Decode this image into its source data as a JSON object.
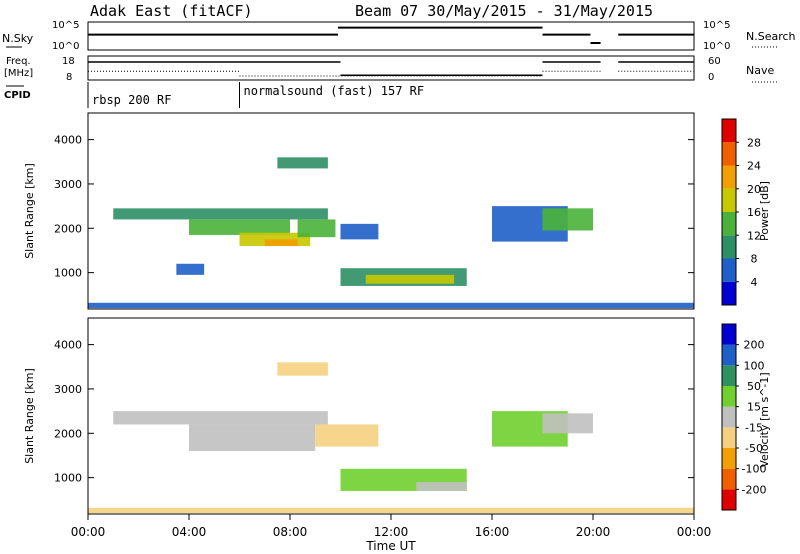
{
  "header": {
    "title_left": "Adak East (fitACF)",
    "title_right": "Beam 07 30/May/2015 - 31/May/2015"
  },
  "chart_data": {
    "type": "heatmap",
    "time_axis": {
      "label": "Time UT",
      "ticks": [
        "00:00",
        "04:00",
        "08:00",
        "12:00",
        "16:00",
        "20:00",
        "00:00"
      ],
      "range_hours": [
        0,
        24
      ]
    },
    "nsky_panel": {
      "label_left": "N.Sky",
      "label_right": "N.Search",
      "ticks_left": [
        "10^5",
        "10^0"
      ],
      "ticks_right": [
        "10^5",
        "10^0"
      ],
      "segments": [
        {
          "t0": 0.0,
          "t1": 9.9,
          "level": 0.55
        },
        {
          "t0": 9.9,
          "t1": 18.0,
          "level": 0.8
        },
        {
          "t0": 18.0,
          "t1": 19.9,
          "level": 0.55
        },
        {
          "t0": 19.9,
          "t1": 20.3,
          "level": 0.25
        },
        {
          "t0": 21.0,
          "t1": 24.0,
          "level": 0.55
        }
      ]
    },
    "freq_panel": {
      "label_left_line1": "Freq.",
      "label_left_line2": "[MHz]",
      "label_right": "Nave",
      "ticks_left": [
        "18",
        "8"
      ],
      "ticks_right": [
        "60",
        "0"
      ],
      "freq_segments": [
        {
          "t0": 0.0,
          "t1": 10.0,
          "freq": 15.5
        },
        {
          "t0": 10.0,
          "t1": 18.0,
          "freq": 10.0
        },
        {
          "t0": 18.0,
          "t1": 20.3,
          "freq": 15.5
        },
        {
          "t0": 21.0,
          "t1": 24.0,
          "freq": 15.5
        }
      ],
      "nave_segments": [
        {
          "t0": 0.0,
          "t1": 6.0,
          "nave": 22
        },
        {
          "t0": 6.0,
          "t1": 18.0,
          "nave": 10
        },
        {
          "t0": 18.0,
          "t1": 20.3,
          "nave": 22
        },
        {
          "t0": 21.0,
          "t1": 24.0,
          "nave": 22
        }
      ]
    },
    "cpid": {
      "label": "CPID",
      "segments": [
        {
          "t0": 0.0,
          "t1": 6.0,
          "text": "rbsp 200 RF"
        },
        {
          "t0": 6.0,
          "t1": 24.0,
          "text": "normalsound (fast) 157 RF"
        }
      ]
    },
    "power_panel": {
      "ylabel": "Slant Range [km]",
      "yticks": [
        1000,
        2000,
        3000,
        4000
      ],
      "ylim": [
        180,
        4600
      ],
      "colorbar_label": "Power [dB]",
      "colorbar_ticks": [
        "28",
        "24",
        "20",
        "16",
        "12",
        "8",
        "4"
      ],
      "colors": [
        "#0000d0",
        "#1e5fc8",
        "#2d8f66",
        "#4ab23a",
        "#c8c800",
        "#f0a000",
        "#f06000",
        "#e00000"
      ],
      "patches": [
        {
          "t0": 1.0,
          "t1": 9.5,
          "r0": 2200,
          "r1": 2450,
          "c": 2
        },
        {
          "t0": 4.0,
          "t1": 8.0,
          "r0": 1850,
          "r1": 2200,
          "c": 3
        },
        {
          "t0": 6.0,
          "t1": 8.8,
          "r0": 1600,
          "r1": 1900,
          "c": 4
        },
        {
          "t0": 7.0,
          "t1": 8.3,
          "r0": 1600,
          "r1": 1750,
          "c": 5
        },
        {
          "t0": 8.3,
          "t1": 9.8,
          "r0": 1800,
          "r1": 2200,
          "c": 3
        },
        {
          "t0": 10.0,
          "t1": 11.5,
          "r0": 1750,
          "r1": 2100,
          "c": 1
        },
        {
          "t0": 7.5,
          "t1": 9.5,
          "r0": 3350,
          "r1": 3600,
          "c": 2
        },
        {
          "t0": 10.0,
          "t1": 15.0,
          "r0": 700,
          "r1": 1100,
          "c": 2
        },
        {
          "t0": 11.0,
          "t1": 14.5,
          "r0": 750,
          "r1": 950,
          "c": 4
        },
        {
          "t0": 16.0,
          "t1": 19.0,
          "r0": 1700,
          "r1": 2500,
          "c": 1
        },
        {
          "t0": 18.0,
          "t1": 20.0,
          "r0": 1950,
          "r1": 2450,
          "c": 3
        },
        {
          "t0": 3.5,
          "t1": 4.6,
          "r0": 950,
          "r1": 1200,
          "c": 1
        },
        {
          "t0": 0.0,
          "t1": 24.0,
          "r0": 200,
          "r1": 320,
          "c": 1
        }
      ]
    },
    "velocity_panel": {
      "ylabel": "Slant Range [km]",
      "yticks": [
        1000,
        2000,
        3000,
        4000
      ],
      "ylim": [
        180,
        4600
      ],
      "colorbar_label": "Velocity [m s^-1]",
      "colorbar_ticks": [
        "200",
        "100",
        "50",
        "15",
        "-15",
        "-50",
        "-100",
        "-200"
      ],
      "colors": [
        "#e00000",
        "#f06000",
        "#f0a000",
        "#f5d080",
        "#c0c0c0",
        "#70d030",
        "#2f9060",
        "#1e5fc8",
        "#0000d0"
      ],
      "patches": [
        {
          "t0": 1.0,
          "t1": 9.5,
          "r0": 2200,
          "r1": 2500,
          "c": 4
        },
        {
          "t0": 4.0,
          "t1": 9.0,
          "r0": 1600,
          "r1": 2200,
          "c": 4
        },
        {
          "t0": 9.0,
          "t1": 11.5,
          "r0": 1700,
          "r1": 2200,
          "c": 3
        },
        {
          "t0": 10.0,
          "t1": 15.0,
          "r0": 700,
          "r1": 1200,
          "c": 5
        },
        {
          "t0": 13.0,
          "t1": 15.0,
          "r0": 700,
          "r1": 900,
          "c": 4
        },
        {
          "t0": 16.0,
          "t1": 19.0,
          "r0": 1700,
          "r1": 2500,
          "c": 5
        },
        {
          "t0": 18.0,
          "t1": 20.0,
          "r0": 2000,
          "r1": 2450,
          "c": 4
        },
        {
          "t0": 7.5,
          "t1": 9.5,
          "r0": 3300,
          "r1": 3600,
          "c": 3
        },
        {
          "t0": 0.0,
          "t1": 24.0,
          "r0": 200,
          "r1": 320,
          "c": 3
        }
      ]
    }
  }
}
